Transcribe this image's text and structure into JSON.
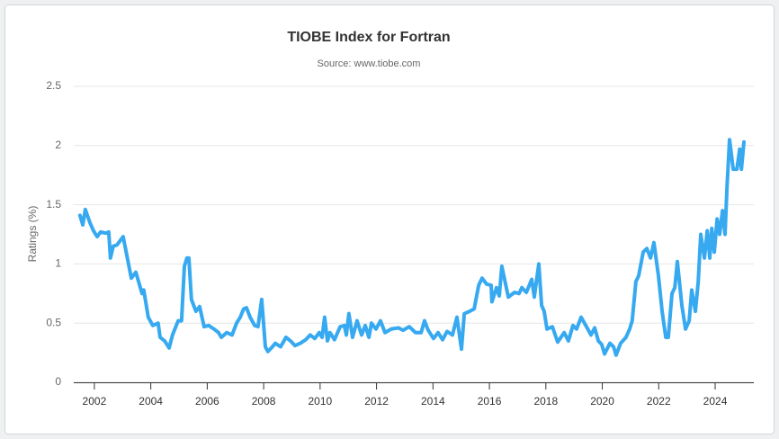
{
  "chart_data": {
    "type": "line",
    "title": "TIOBE Index for Fortran",
    "subtitle": "Source: www.tiobe.com",
    "y_label": "Ratings (%)",
    "color": "#36a9f0",
    "grid": true,
    "xlim": [
      2001.27,
      2025.37
    ],
    "xticks": [
      2002,
      2004,
      2006,
      2008,
      2010,
      2012,
      2014,
      2016,
      2018,
      2020,
      2022,
      2024
    ],
    "ylim": [
      0,
      2.5
    ],
    "yticks": [
      0,
      0.5,
      1,
      1.5,
      2,
      2.5
    ],
    "x": [
      2001.49,
      2001.59,
      2001.68,
      2001.84,
      2001.97,
      2002.1,
      2002.22,
      2002.41,
      2002.51,
      2002.57,
      2002.67,
      2002.8,
      2003.02,
      2003.31,
      2003.47,
      2003.69,
      2003.75,
      2003.91,
      2004.07,
      2004.26,
      2004.33,
      2004.49,
      2004.65,
      2004.77,
      2004.97,
      2005.09,
      2005.19,
      2005.28,
      2005.35,
      2005.44,
      2005.6,
      2005.73,
      2005.89,
      2006.05,
      2006.24,
      2006.4,
      2006.5,
      2006.69,
      2006.88,
      2007.04,
      2007.17,
      2007.29,
      2007.39,
      2007.52,
      2007.68,
      2007.8,
      2007.93,
      2008.06,
      2008.15,
      2008.31,
      2008.41,
      2008.6,
      2008.79,
      2008.95,
      2009.11,
      2009.3,
      2009.49,
      2009.65,
      2009.81,
      2009.97,
      2010.07,
      2010.16,
      2010.26,
      2010.35,
      2010.51,
      2010.71,
      2010.86,
      2010.93,
      2011.02,
      2011.15,
      2011.31,
      2011.47,
      2011.6,
      2011.73,
      2011.82,
      2011.98,
      2012.14,
      2012.3,
      2012.52,
      2012.78,
      2012.94,
      2013.16,
      2013.38,
      2013.58,
      2013.7,
      2013.83,
      2014.02,
      2014.18,
      2014.34,
      2014.5,
      2014.69,
      2014.85,
      2015.01,
      2015.11,
      2015.3,
      2015.46,
      2015.62,
      2015.74,
      2015.9,
      2016.06,
      2016.09,
      2016.25,
      2016.35,
      2016.44,
      2016.67,
      2016.89,
      2017.05,
      2017.15,
      2017.31,
      2017.5,
      2017.59,
      2017.75,
      2017.85,
      2017.94,
      2018.04,
      2018.23,
      2018.42,
      2018.65,
      2018.8,
      2018.96,
      2019.09,
      2019.25,
      2019.44,
      2019.6,
      2019.73,
      2019.86,
      2019.98,
      2020.08,
      2020.27,
      2020.4,
      2020.49,
      2020.65,
      2020.84,
      2020.97,
      2021.06,
      2021.19,
      2021.29,
      2021.45,
      2021.58,
      2021.71,
      2021.83,
      2021.99,
      2022.12,
      2022.25,
      2022.34,
      2022.47,
      2022.57,
      2022.66,
      2022.82,
      2022.95,
      2023.08,
      2023.17,
      2023.3,
      2023.4,
      2023.49,
      2023.62,
      2023.72,
      2023.81,
      2023.88,
      2023.97,
      2024.07,
      2024.16,
      2024.26,
      2024.35,
      2024.42,
      2024.51,
      2024.64,
      2024.77,
      2024.87,
      2024.93,
      2025.02
    ],
    "values": [
      1.41,
      1.33,
      1.46,
      1.35,
      1.28,
      1.23,
      1.27,
      1.26,
      1.27,
      1.05,
      1.15,
      1.16,
      1.23,
      0.88,
      0.93,
      0.75,
      0.78,
      0.55,
      0.48,
      0.5,
      0.38,
      0.35,
      0.29,
      0.4,
      0.52,
      0.52,
      0.98,
      1.05,
      1.05,
      0.7,
      0.6,
      0.64,
      0.47,
      0.48,
      0.45,
      0.42,
      0.38,
      0.42,
      0.4,
      0.5,
      0.55,
      0.62,
      0.63,
      0.55,
      0.48,
      0.47,
      0.7,
      0.3,
      0.26,
      0.3,
      0.33,
      0.3,
      0.38,
      0.35,
      0.31,
      0.33,
      0.36,
      0.4,
      0.37,
      0.42,
      0.38,
      0.55,
      0.35,
      0.42,
      0.36,
      0.47,
      0.48,
      0.4,
      0.58,
      0.38,
      0.52,
      0.4,
      0.48,
      0.38,
      0.5,
      0.45,
      0.52,
      0.42,
      0.45,
      0.46,
      0.44,
      0.47,
      0.42,
      0.42,
      0.52,
      0.44,
      0.37,
      0.42,
      0.36,
      0.43,
      0.4,
      0.55,
      0.28,
      0.58,
      0.6,
      0.62,
      0.82,
      0.88,
      0.83,
      0.82,
      0.68,
      0.8,
      0.73,
      0.98,
      0.72,
      0.76,
      0.75,
      0.8,
      0.76,
      0.87,
      0.72,
      1.0,
      0.65,
      0.6,
      0.45,
      0.47,
      0.34,
      0.42,
      0.35,
      0.48,
      0.45,
      0.55,
      0.47,
      0.4,
      0.46,
      0.35,
      0.32,
      0.24,
      0.33,
      0.3,
      0.23,
      0.33,
      0.38,
      0.45,
      0.52,
      0.85,
      0.9,
      1.1,
      1.13,
      1.05,
      1.18,
      0.9,
      0.6,
      0.38,
      0.38,
      0.75,
      0.8,
      1.02,
      0.65,
      0.45,
      0.52,
      0.78,
      0.6,
      0.85,
      1.25,
      1.05,
      1.28,
      1.05,
      1.3,
      1.1,
      1.38,
      1.25,
      1.45,
      1.25,
      1.65,
      2.05,
      1.8,
      1.8,
      1.97,
      1.8,
      2.03
    ]
  }
}
